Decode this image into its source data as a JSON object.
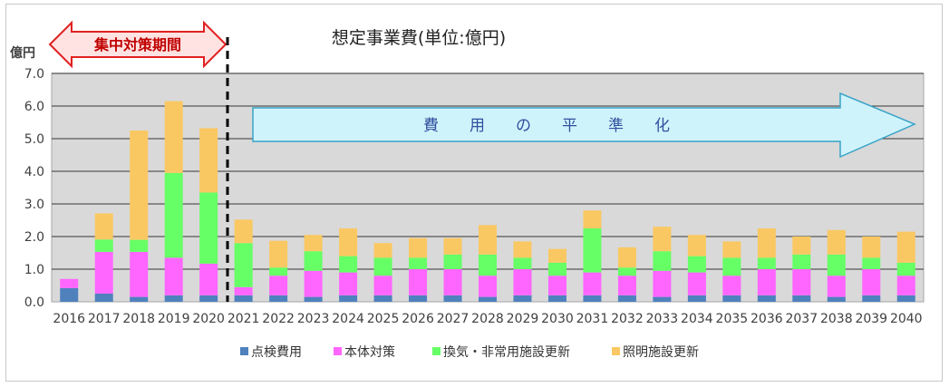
{
  "chart_data": {
    "type": "bar",
    "stacked": true,
    "title": "想定事業費(単位:億円)",
    "ylabel": "億円",
    "ylim": [
      0,
      7
    ],
    "yticks": [
      "0.0",
      "1.0",
      "2.0",
      "3.0",
      "4.0",
      "5.0",
      "6.0",
      "7.0"
    ],
    "grid": true,
    "legend_position": "bottom",
    "categories": [
      "2016",
      "2017",
      "2018",
      "2019",
      "2020",
      "2021",
      "2022",
      "2023",
      "2024",
      "2025",
      "2026",
      "2027",
      "2028",
      "2029",
      "2030",
      "2031",
      "2032",
      "2033",
      "2034",
      "2035",
      "2036",
      "2037",
      "2038",
      "2039",
      "2040"
    ],
    "series": [
      {
        "name": "点検費用",
        "color": "#4f81bd",
        "values": [
          0.42,
          0.25,
          0.15,
          0.2,
          0.2,
          0.2,
          0.2,
          0.15,
          0.2,
          0.2,
          0.2,
          0.2,
          0.15,
          0.2,
          0.2,
          0.2,
          0.2,
          0.15,
          0.2,
          0.2,
          0.2,
          0.2,
          0.15,
          0.2,
          0.2
        ]
      },
      {
        "name": "本体対策",
        "color": "#ff66ff",
        "values": [
          0.28,
          1.28,
          1.38,
          1.15,
          0.97,
          0.25,
          0.6,
          0.8,
          0.7,
          0.6,
          0.8,
          0.8,
          0.65,
          0.8,
          0.6,
          0.7,
          0.6,
          0.8,
          0.7,
          0.6,
          0.8,
          0.8,
          0.65,
          0.8,
          0.6
        ]
      },
      {
        "name": "換気・非常用施設更新",
        "color": "#66ff66",
        "values": [
          0,
          0.38,
          0.37,
          2.6,
          2.18,
          1.35,
          0.25,
          0.6,
          0.5,
          0.55,
          0.35,
          0.45,
          0.65,
          0.35,
          0.4,
          1.35,
          0.25,
          0.6,
          0.5,
          0.55,
          0.35,
          0.45,
          0.65,
          0.35,
          0.4
        ]
      },
      {
        "name": "照明施設更新",
        "color": "#fac862",
        "values": [
          0,
          0.8,
          3.35,
          2.2,
          1.97,
          0.72,
          0.82,
          0.5,
          0.85,
          0.45,
          0.6,
          0.5,
          0.9,
          0.5,
          0.42,
          0.55,
          0.62,
          0.75,
          0.65,
          0.5,
          0.9,
          0.55,
          0.75,
          0.65,
          0.95
        ]
      }
    ],
    "annotations": {
      "focus_period": "集中対策期間",
      "leveling": "費　　用　　の　　平　　準　　化"
    }
  }
}
